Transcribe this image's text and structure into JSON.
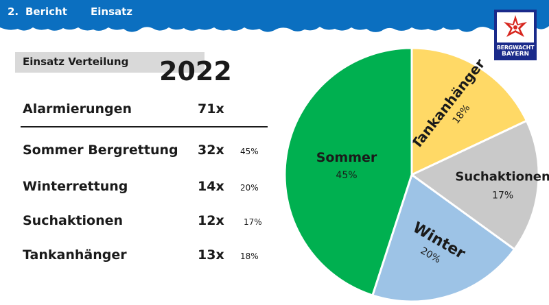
{
  "header": {
    "number": "2.",
    "title": "Bericht",
    "subtitle": "Einsatz"
  },
  "logo": {
    "line1": "BERGWACHT",
    "line2": "BAYERN",
    "icon": "edelweiss-icon"
  },
  "section": {
    "label": "Einsatz Verteilung",
    "year": "2022"
  },
  "summary": {
    "label": "Alarmierungen",
    "count": "71x"
  },
  "rows": [
    {
      "label": "Sommer Bergrettung",
      "count": "32x",
      "pct": "45%"
    },
    {
      "label": "Winterrettung",
      "count": "14x",
      "pct": "20%"
    },
    {
      "label": "Suchaktionen",
      "count": "12x",
      "pct": "17%"
    },
    {
      "label": "Tankanhänger",
      "count": "13x",
      "pct": "18%"
    }
  ],
  "colors": {
    "header_blue": "#0b6fc0",
    "sommer": "#00b050",
    "winter": "#9dc3e6",
    "suchaktionen": "#c9c9c9",
    "tankanhaenger": "#ffd966"
  },
  "chart_data": {
    "type": "pie",
    "title": "",
    "slices": [
      {
        "label": "Tankanhänger",
        "pct_label": "18%",
        "value": 18,
        "color": "#ffd966"
      },
      {
        "label": "Suchaktionen",
        "pct_label": "17%",
        "value": 17,
        "color": "#c9c9c9"
      },
      {
        "label": "Winter",
        "pct_label": "20%",
        "value": 20,
        "color": "#9dc3e6"
      },
      {
        "label": "Sommer",
        "pct_label": "45%",
        "value": 45,
        "color": "#00b050"
      }
    ]
  }
}
